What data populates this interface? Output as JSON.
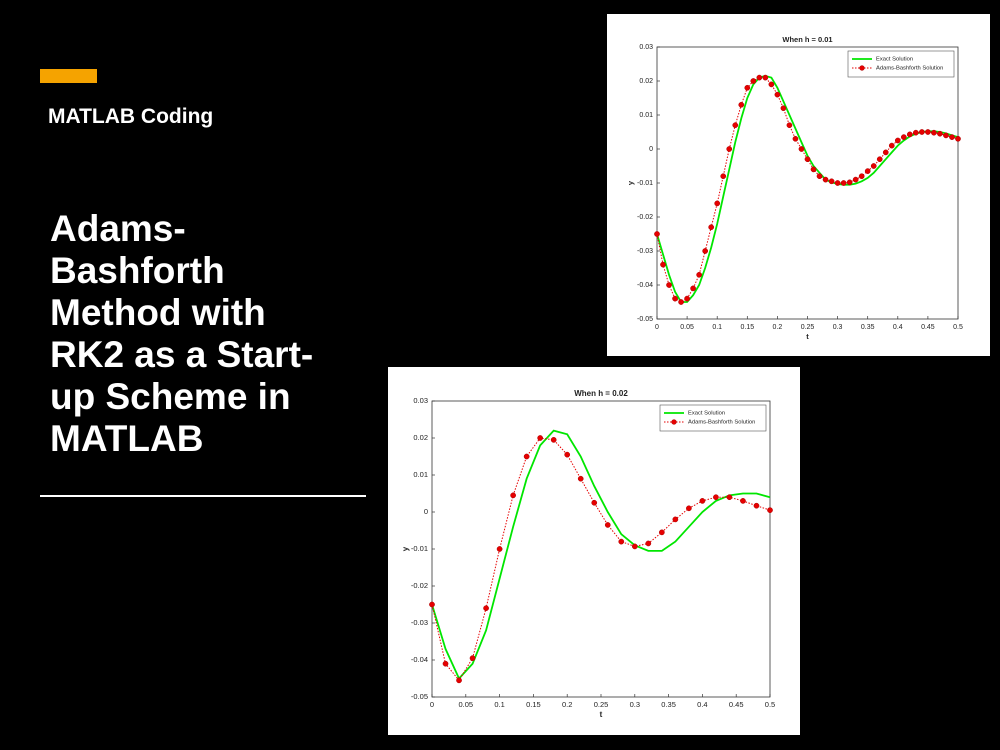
{
  "slide": {
    "tag": "MATLAB Coding",
    "title_lines": [
      "Adams-",
      "Bashforth",
      "Method with",
      "RK2 as a Start-",
      "up Scheme in",
      "MATLAB"
    ]
  },
  "chart_data": [
    {
      "type": "line",
      "title": "When h = 0.01",
      "x_label": "t",
      "y_label": "y",
      "x": [
        0,
        0.01,
        0.02,
        0.03,
        0.04,
        0.05,
        0.06,
        0.07,
        0.08,
        0.09,
        0.1,
        0.11,
        0.12,
        0.13,
        0.14,
        0.15,
        0.16,
        0.17,
        0.18,
        0.19,
        0.2,
        0.21,
        0.22,
        0.23,
        0.24,
        0.25,
        0.26,
        0.27,
        0.28,
        0.29,
        0.3,
        0.31,
        0.32,
        0.33,
        0.34,
        0.35,
        0.36,
        0.37,
        0.38,
        0.39,
        0.4,
        0.41,
        0.42,
        0.43,
        0.44,
        0.45,
        0.46,
        0.47,
        0.48,
        0.49,
        0.5
      ],
      "series": [
        {
          "name": "Exact Solution",
          "color": "#00e600",
          "linestyle": "solid",
          "values": [
            -0.025,
            -0.031,
            -0.037,
            -0.042,
            -0.045,
            -0.045,
            -0.043,
            -0.04,
            -0.035,
            -0.029,
            -0.022,
            -0.014,
            -0.006,
            0.002,
            0.009,
            0.015,
            0.019,
            0.021,
            0.0215,
            0.021,
            0.018,
            0.014,
            0.01,
            0.006,
            0.002,
            -0.002,
            -0.005,
            -0.007,
            -0.009,
            -0.0098,
            -0.0103,
            -0.0105,
            -0.0105,
            -0.0102,
            -0.0095,
            -0.0085,
            -0.007,
            -0.005,
            -0.003,
            -0.001,
            0.001,
            0.0025,
            0.0037,
            0.0045,
            0.005,
            0.0052,
            0.0052,
            0.005,
            0.0046,
            0.004,
            0.0035
          ]
        },
        {
          "name": "Adams-Bashforth Solution",
          "color": "#e60000",
          "linestyle": "dotted",
          "marker": "circle",
          "values": [
            -0.025,
            -0.034,
            -0.04,
            -0.044,
            -0.045,
            -0.044,
            -0.041,
            -0.037,
            -0.03,
            -0.023,
            -0.016,
            -0.008,
            0,
            0.007,
            0.013,
            0.018,
            0.02,
            0.021,
            0.021,
            0.019,
            0.016,
            0.012,
            0.007,
            0.003,
            0,
            -0.003,
            -0.006,
            -0.008,
            -0.009,
            -0.0095,
            -0.01,
            -0.01,
            -0.0098,
            -0.009,
            -0.008,
            -0.0065,
            -0.005,
            -0.003,
            -0.001,
            0.001,
            0.0025,
            0.0035,
            0.0043,
            0.0048,
            0.005,
            0.005,
            0.0048,
            0.0045,
            0.004,
            0.0035,
            0.003
          ]
        }
      ],
      "xlim": [
        0,
        0.5
      ],
      "xticks": [
        0,
        0.05,
        0.1,
        0.15,
        0.2,
        0.25,
        0.3,
        0.35,
        0.4,
        0.45,
        0.5
      ],
      "ylim": [
        -0.05,
        0.03
      ],
      "yticks": [
        -0.05,
        -0.04,
        -0.03,
        -0.02,
        -0.01,
        0,
        0.01,
        0.02,
        0.03
      ],
      "legend": "upper right"
    },
    {
      "type": "line",
      "title": "When h = 0.02",
      "x_label": "t",
      "y_label": "y",
      "x": [
        0,
        0.02,
        0.04,
        0.06,
        0.08,
        0.1,
        0.12,
        0.14,
        0.16,
        0.18,
        0.2,
        0.22,
        0.24,
        0.26,
        0.28,
        0.3,
        0.32,
        0.34,
        0.36,
        0.38,
        0.4,
        0.42,
        0.44,
        0.46,
        0.48,
        0.5
      ],
      "series": [
        {
          "name": "Exact Solution",
          "color": "#00e600",
          "linestyle": "solid",
          "values": [
            -0.025,
            -0.037,
            -0.045,
            -0.041,
            -0.032,
            -0.018,
            -0.004,
            0.009,
            0.018,
            0.022,
            0.021,
            0.015,
            0.007,
            0,
            -0.006,
            -0.009,
            -0.0105,
            -0.0105,
            -0.008,
            -0.004,
            0,
            0.003,
            0.0045,
            0.005,
            0.005,
            0.004
          ]
        },
        {
          "name": "Adams-Bashforth Solution",
          "color": "#e60000",
          "linestyle": "dotted",
          "marker": "circle",
          "values": [
            -0.025,
            -0.041,
            -0.0455,
            -0.0395,
            -0.026,
            -0.01,
            0.0045,
            0.015,
            0.02,
            0.0195,
            0.0155,
            0.009,
            0.0025,
            -0.0035,
            -0.008,
            -0.0093,
            -0.0085,
            -0.0055,
            -0.002,
            0.001,
            0.003,
            0.004,
            0.004,
            0.003,
            0.0017,
            0.0005
          ]
        }
      ],
      "xlim": [
        0,
        0.5
      ],
      "xticks": [
        0,
        0.05,
        0.1,
        0.15,
        0.2,
        0.25,
        0.3,
        0.35,
        0.4,
        0.45,
        0.5
      ],
      "ylim": [
        -0.05,
        0.03
      ],
      "yticks": [
        -0.05,
        -0.04,
        -0.03,
        -0.02,
        -0.01,
        0,
        0.01,
        0.02,
        0.03
      ],
      "legend": "upper right"
    }
  ]
}
